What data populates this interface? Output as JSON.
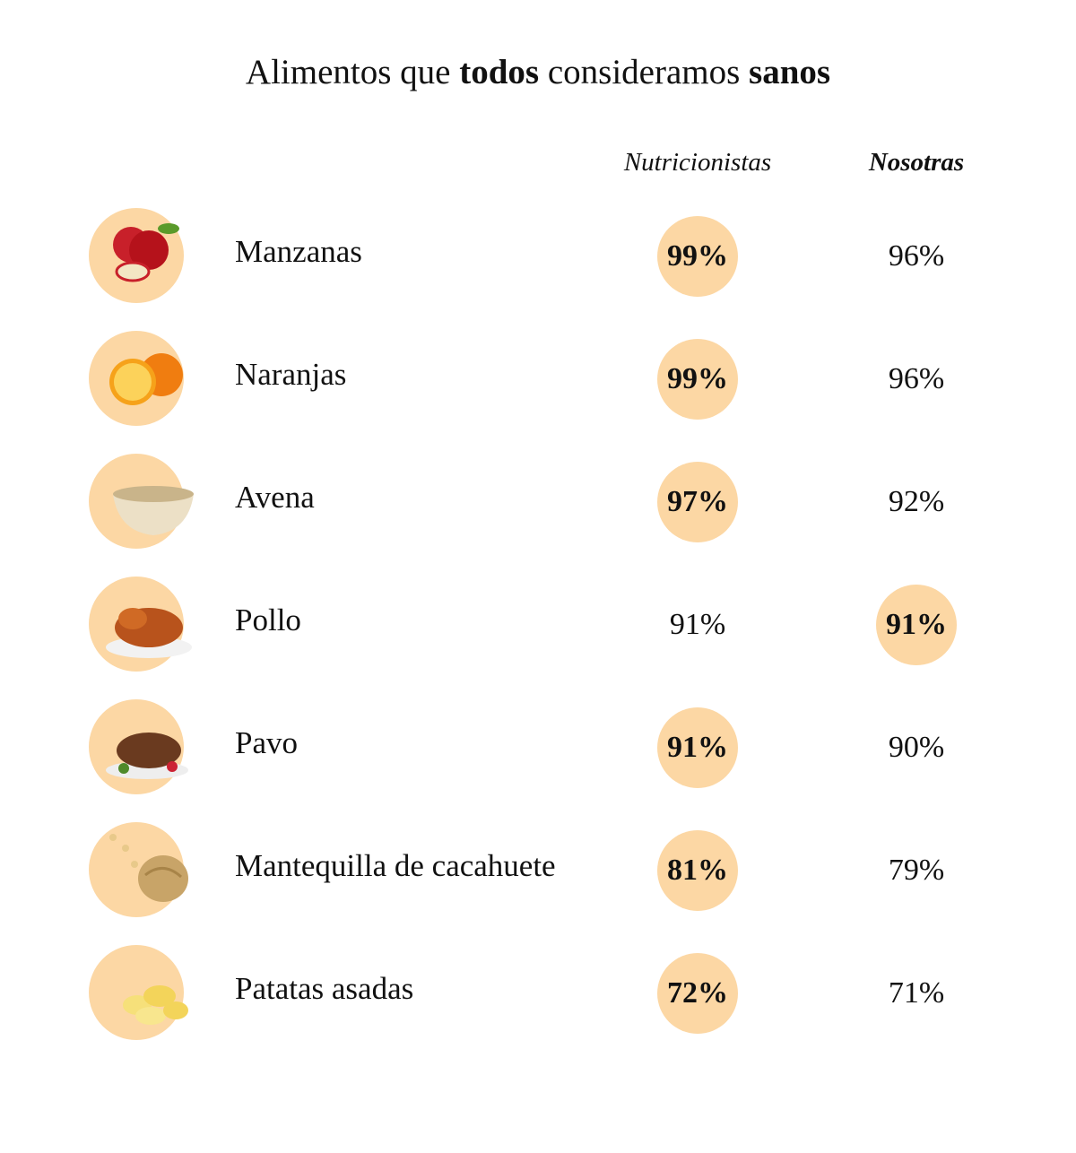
{
  "title": [
    {
      "text": "Alimentos que",
      "bold": false
    },
    {
      "text": "todos",
      "bold": true
    },
    {
      "text": "consideramos",
      "bold": false
    },
    {
      "text": "sanos",
      "bold": true
    }
  ],
  "table": {
    "columns": [
      {
        "text": "Nutricionistas",
        "bold": false
      },
      {
        "text": "Nosotras",
        "bold": true
      }
    ],
    "rows": [
      {
        "name": "Manzanas",
        "values": [
          "99%",
          "96%"
        ],
        "highlight": 0
      },
      {
        "name": "Naranjas",
        "values": [
          "99%",
          "96%"
        ],
        "highlight": 0
      },
      {
        "name": "Avena",
        "values": [
          "97%",
          "92%"
        ],
        "highlight": 0
      },
      {
        "name": "Pollo",
        "values": [
          "91%",
          "91%"
        ],
        "highlight": 1
      },
      {
        "name": "Pavo",
        "values": [
          "91%",
          "90%"
        ],
        "highlight": 0
      },
      {
        "name": "Mantequilla de cacahuete",
        "values": [
          "81%",
          "79%"
        ],
        "highlight": 0
      },
      {
        "name": "Patatas asadas",
        "values": [
          "72%",
          "71%"
        ],
        "highlight": 0
      }
    ]
  }
}
